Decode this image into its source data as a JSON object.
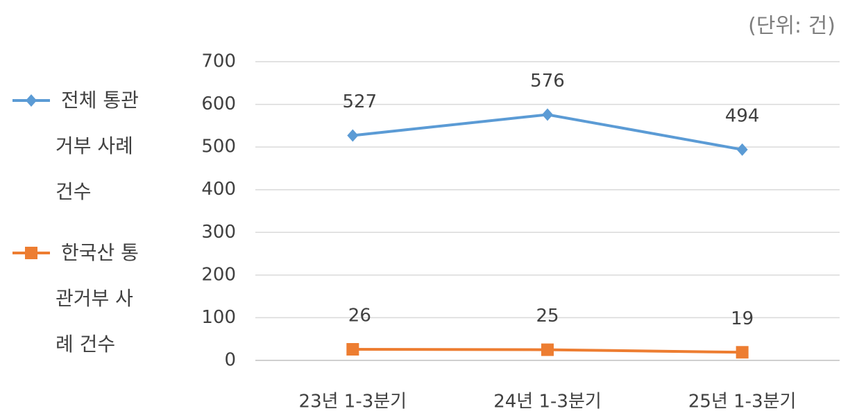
{
  "chart_data": {
    "type": "line",
    "unit_note": "(단위: 건)",
    "categories": [
      "23년 1-3분기",
      "24년 1-3분기",
      "25년 1-3분기"
    ],
    "series": [
      {
        "name": "전체 통관거부 사례 건수",
        "color": "#5b9bd5",
        "marker": "diamond",
        "values": [
          527,
          576,
          494
        ]
      },
      {
        "name": "한국산 통관거부 사례 건수",
        "color": "#ed7d31",
        "marker": "square",
        "values": [
          26,
          25,
          19
        ]
      }
    ],
    "ylim": [
      0,
      700
    ],
    "yticks": [
      0,
      100,
      200,
      300,
      400,
      500,
      600,
      700
    ],
    "grid": true,
    "legend": "left"
  }
}
